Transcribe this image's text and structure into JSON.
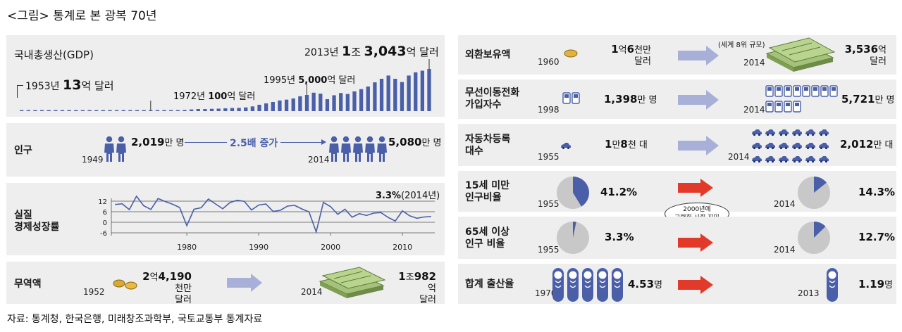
{
  "title": "<그림> 통계로 본 광복 70년",
  "source": "자료: 통계청, 한국은행, 미래창조과학부, 국토교통부 통계자료",
  "colors": {
    "accent": "#4a5fa8",
    "panel": "#eeeeee",
    "arrow_blue": "#a8b0d8",
    "arrow_red": "#e23a2a"
  },
  "gdp": {
    "label": "국내총생산(GDP)",
    "y1953": "1953년",
    "v1953": "13",
    "u1953": "억 달러",
    "y1972": "1972년",
    "v1972": "100",
    "u1972": "억 달러",
    "y1995": "1995년",
    "v1995": "5,000",
    "u1995": "억 달러",
    "y2013": "2013년",
    "v2013a": "1",
    "v2013b": "조",
    "v2013c": "3,043",
    "u2013": "억 달러"
  },
  "pop": {
    "label": "인구",
    "y1949": "1949",
    "v1949": "2,019",
    "u1949": "만 명",
    "mid": "2.5배 증가",
    "y2014": "2014",
    "v2014": "5,080",
    "u2014": "만 명"
  },
  "growth": {
    "label1": "실질",
    "label2": "경제성장률",
    "latest": "3.3%",
    "latest_note": "(2014년)"
  },
  "trade": {
    "label": "무역액",
    "y1952": "1952",
    "v1952a": "2",
    "v1952b": "억",
    "v1952c": "4,190",
    "v1952d": "천만",
    "v1952e": "달러",
    "y2014": "2014",
    "v2014a": "1",
    "v2014b": "조",
    "v2014c": "982",
    "v2014d": "억",
    "v2014e": "달러"
  },
  "fx": {
    "label": "외환보유액",
    "y1960": "1960",
    "v1960a": "1",
    "v1960b": "억",
    "v1960c": "6",
    "v1960d": "천만",
    "v1960e": "달러",
    "note": "(세계 8위 규모)",
    "y2014": "2014",
    "v2014a": "3,536",
    "v2014b": "억",
    "v2014c": "달러"
  },
  "mobile": {
    "label1": "무선이동전화",
    "label2": "가입자수",
    "y1998": "1998",
    "v1998": "1,398",
    "u1998": "만 명",
    "y2014": "2014",
    "v2014": "5,721",
    "u2014": "만 명"
  },
  "car": {
    "label1": "자동차등록",
    "label2": "대수",
    "y1955": "1955",
    "v1955a": "1",
    "v1955b": "만",
    "v1955c": "8",
    "v1955d": "천 대",
    "y2014": "2014",
    "v2014": "2,012",
    "u2014": "만 대"
  },
  "under15": {
    "label1": "15세 미만",
    "label2": "인구비율",
    "y1955": "1955",
    "v1955": "41.2%",
    "y2014": "2014",
    "v2014": "14.3%",
    "p1955": 41.2,
    "p2014": 14.3
  },
  "aging_note1": "2000년에",
  "aging_note2": "고령화 사회 진입",
  "over65": {
    "label1": "65세 이상",
    "label2": "인구 비율",
    "y1955": "1955",
    "v1955": "3.3%",
    "y2014": "2014",
    "v2014": "12.7%",
    "p1955": 3.3,
    "p2014": 12.7
  },
  "fertility": {
    "label": "합계 출산율",
    "y1970": "1970",
    "v1970": "4.53",
    "u1970": "명",
    "y2013": "2013",
    "v2013": "1.19",
    "u2013": "명"
  },
  "chart_data": [
    {
      "type": "bar",
      "title": "국내총생산(GDP)",
      "categories": [
        "1953",
        "1954",
        "1955",
        "1956",
        "1957",
        "1958",
        "1959",
        "1960",
        "1961",
        "1962",
        "1963",
        "1964",
        "1965",
        "1966",
        "1967",
        "1968",
        "1969",
        "1970",
        "1971",
        "1972",
        "1973",
        "1974",
        "1975",
        "1976",
        "1977",
        "1978",
        "1979",
        "1980",
        "1981",
        "1982",
        "1983",
        "1984",
        "1985",
        "1986",
        "1987",
        "1988",
        "1989",
        "1990",
        "1991",
        "1992",
        "1993",
        "1994",
        "1995",
        "1996",
        "1997",
        "1998",
        "1999",
        "2000",
        "2001",
        "2002",
        "2003",
        "2004",
        "2005",
        "2006",
        "2007",
        "2008",
        "2009",
        "2010",
        "2011",
        "2012",
        "2013"
      ],
      "values": [
        13,
        15,
        14,
        14,
        17,
        19,
        20,
        20,
        21,
        23,
        27,
        29,
        30,
        37,
        42,
        50,
        64,
        81,
        93,
        100,
        134,
        190,
        210,
        290,
        370,
        520,
        650,
        640,
        720,
        770,
        870,
        960,
        1000,
        1150,
        1460,
        1970,
        2400,
        2830,
        3300,
        3550,
        3920,
        4600,
        5000,
        5700,
        5400,
        3700,
        4900,
        5600,
        5300,
        6100,
        6800,
        7600,
        8900,
        10000,
        11000,
        10000,
        9000,
        11000,
        12000,
        12500,
        13043
      ],
      "ylabel": "억 달러",
      "ylim": [
        0,
        13043
      ]
    },
    {
      "type": "line",
      "title": "실질 경제성장률",
      "x": [
        1970,
        1971,
        1972,
        1973,
        1974,
        1975,
        1976,
        1977,
        1978,
        1979,
        1980,
        1981,
        1982,
        1983,
        1984,
        1985,
        1986,
        1987,
        1988,
        1989,
        1990,
        1991,
        1992,
        1993,
        1994,
        1995,
        1996,
        1997,
        1998,
        1999,
        2000,
        2001,
        2002,
        2003,
        2004,
        2005,
        2006,
        2007,
        2008,
        2009,
        2010,
        2011,
        2012,
        2013,
        2014
      ],
      "y": [
        10.1,
        10.5,
        7.2,
        14.8,
        9.4,
        7.3,
        13.5,
        11.8,
        10.3,
        8.4,
        -1.9,
        7.4,
        8.3,
        13.2,
        10.4,
        7.7,
        11.2,
        12.5,
        11.9,
        7.0,
        9.8,
        10.4,
        6.2,
        6.8,
        9.2,
        9.6,
        7.6,
        5.9,
        -5.5,
        11.3,
        8.9,
        4.5,
        7.4,
        2.9,
        4.9,
        3.9,
        5.2,
        5.5,
        2.8,
        0.7,
        6.5,
        3.7,
        2.3,
        3.0,
        3.3
      ],
      "yticks": [
        12,
        6,
        0,
        -6
      ],
      "xticks": [
        1980,
        1990,
        2000,
        2010
      ],
      "ylim": [
        -6,
        12
      ]
    },
    {
      "type": "pie",
      "title": "15세 미만 인구비율 1955",
      "values": [
        41.2,
        58.8
      ]
    },
    {
      "type": "pie",
      "title": "15세 미만 인구비율 2014",
      "values": [
        14.3,
        85.7
      ]
    },
    {
      "type": "pie",
      "title": "65세 이상 인구 비율 1955",
      "values": [
        3.3,
        96.7
      ]
    },
    {
      "type": "pie",
      "title": "65세 이상 인구 비율 2014",
      "values": [
        12.7,
        87.3
      ]
    }
  ]
}
